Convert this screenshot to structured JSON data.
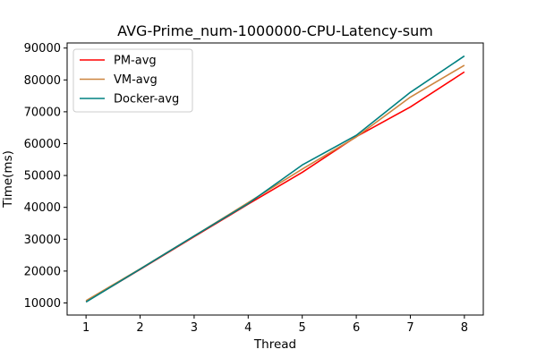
{
  "chart_data": {
    "type": "line",
    "title": "AVG-Prime_num-1000000-CPU-Latency-sum",
    "xlabel": "Thread",
    "ylabel": "Time(ms)",
    "x": [
      1,
      2,
      3,
      4,
      5,
      6,
      7,
      8
    ],
    "xlim": [
      0.65,
      8.35
    ],
    "ylim": [
      6200,
      91600
    ],
    "xticks": [
      1,
      2,
      3,
      4,
      5,
      6,
      7,
      8
    ],
    "yticks": [
      10000,
      20000,
      30000,
      40000,
      50000,
      60000,
      70000,
      80000,
      90000
    ],
    "grid": false,
    "legend_position": "top-left",
    "series": [
      {
        "name": "PM-avg",
        "color": "#ff0000",
        "values": [
          10400,
          20500,
          30800,
          41000,
          51000,
          62200,
          71500,
          82500
        ]
      },
      {
        "name": "VM-avg",
        "color": "#cd853f",
        "values": [
          10700,
          20700,
          31000,
          41500,
          52000,
          62100,
          74600,
          84600
        ]
      },
      {
        "name": "Docker-avg",
        "color": "#008080",
        "values": [
          10300,
          20600,
          31000,
          41200,
          53300,
          62600,
          76100,
          87500
        ]
      }
    ]
  }
}
